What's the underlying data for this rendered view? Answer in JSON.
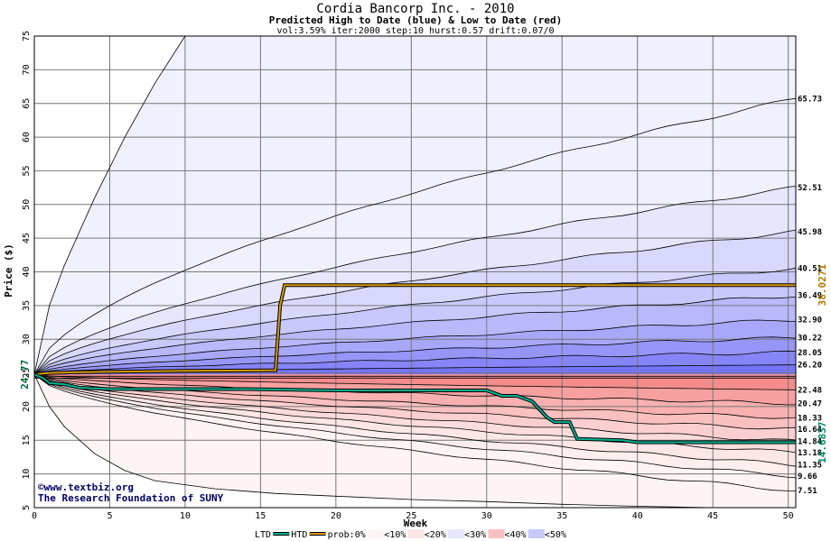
{
  "chart_data": {
    "type": "area",
    "title": "Cordia Bancorp Inc. - 2010",
    "subtitle": "Predicted High to Date (blue) &  Low to Date (red)",
    "params": "vol:3.59% iter:2000 step:10 hurst:0.57 drift:0.07/0",
    "xlabel": "Week",
    "ylabel": "Price ($)",
    "xlim": [
      0,
      50.5
    ],
    "ylim": [
      5,
      75
    ],
    "xticks": [
      0,
      5,
      10,
      15,
      20,
      25,
      30,
      35,
      40,
      45,
      50
    ],
    "yticks": [
      5,
      10,
      15,
      20,
      25,
      30,
      35,
      40,
      45,
      50,
      55,
      60,
      65,
      70,
      75
    ],
    "start_price": 24.77,
    "start_label": "24.77",
    "grid": true,
    "high_bands": [
      {
        "end": 26.2,
        "label": "26.20"
      },
      {
        "end": 28.05,
        "label": "28.05"
      },
      {
        "end": 30.22,
        "label": "30.22"
      },
      {
        "end": 32.9,
        "label": "32.90"
      },
      {
        "end": 36.49,
        "label": "36.49"
      },
      {
        "end": 40.51,
        "label": "40.51"
      },
      {
        "end": 45.98,
        "label": "45.98"
      },
      {
        "end": 52.51,
        "label": "52.51"
      },
      {
        "end": 65.73,
        "label": "65.73"
      }
    ],
    "low_bands": [
      {
        "end": 22.48,
        "label": "22.48"
      },
      {
        "end": 20.47,
        "label": "20.47"
      },
      {
        "end": 18.33,
        "label": "18.33"
      },
      {
        "end": 16.64,
        "label": "16.64"
      },
      {
        "end": 14.84,
        "label": "14.84"
      },
      {
        "end": 13.18,
        "label": "13.18"
      },
      {
        "end": 11.35,
        "label": "11.35"
      },
      {
        "end": 9.66,
        "label": "9.66"
      },
      {
        "end": 7.51,
        "label": "7.51"
      }
    ],
    "htd_series": {
      "name": "HTD",
      "end_label": "38.0271",
      "points": [
        [
          0,
          24.77
        ],
        [
          1,
          25.0
        ],
        [
          3,
          25.1
        ],
        [
          6,
          25.2
        ],
        [
          10,
          25.3
        ],
        [
          16,
          25.4
        ],
        [
          16.3,
          35.0
        ],
        [
          16.6,
          38.03
        ],
        [
          50.5,
          38.03
        ]
      ]
    },
    "ltd_series": {
      "name": "LTD",
      "end_label": "14.6837",
      "points": [
        [
          0,
          24.77
        ],
        [
          0.6,
          24.2
        ],
        [
          1,
          23.5
        ],
        [
          2,
          23.3
        ],
        [
          3,
          22.8
        ],
        [
          5,
          22.6
        ],
        [
          8,
          22.6
        ],
        [
          14,
          22.6
        ],
        [
          20,
          22.4
        ],
        [
          30,
          22.4
        ],
        [
          31,
          21.6
        ],
        [
          32,
          21.6
        ],
        [
          33,
          20.8
        ],
        [
          34,
          18.4
        ],
        [
          34.5,
          17.7
        ],
        [
          35.5,
          17.7
        ],
        [
          36,
          15.2
        ],
        [
          39,
          15.0
        ],
        [
          40,
          14.7
        ],
        [
          50.5,
          14.7
        ]
      ]
    },
    "max_curve": [
      [
        0,
        24.77
      ],
      [
        1,
        35
      ],
      [
        2,
        41
      ],
      [
        4,
        51
      ],
      [
        6,
        60
      ],
      [
        8,
        68
      ],
      [
        10,
        75
      ]
    ],
    "min_curve": [
      [
        0,
        24.77
      ],
      [
        1,
        20
      ],
      [
        2,
        17
      ],
      [
        4,
        13
      ],
      [
        6,
        10.5
      ],
      [
        8,
        9
      ],
      [
        12,
        7.8
      ],
      [
        16,
        7.1
      ],
      [
        20,
        6.7
      ],
      [
        25,
        6.2
      ],
      [
        30,
        5.9
      ],
      [
        35,
        5.5
      ],
      [
        40,
        5.2
      ],
      [
        45,
        5.0
      ],
      [
        50.5,
        5.0
      ]
    ]
  },
  "credit": {
    "line1": "©www.textbiz.org",
    "line2": "The Research Foundation of SUNY"
  },
  "legend": {
    "ltd": "LTD",
    "htd": "HTD",
    "prob": "prob:0%",
    "items": [
      "<10%",
      "<20%",
      "<30%",
      "<40%",
      "<50%"
    ]
  },
  "colors": {
    "high_fills": [
      "#7474f8",
      "#8585f8",
      "#9696f8",
      "#a8a8fa",
      "#b8b8fb",
      "#c8c8fc",
      "#d8d8fc",
      "#e6e6fd",
      "#f0f0fe"
    ],
    "low_fills": [
      "#f48c8c",
      "#f6a0a0",
      "#f8b0b0",
      "#fac0c0",
      "#fbcfcf",
      "#fcdcdc",
      "#fde6e6",
      "#feeeee",
      "#fff4f4"
    ],
    "htd": "#d89a00",
    "ltd": "#00b090",
    "legend_swatches": [
      "#fff4f4",
      "#fde6e6",
      "#e6e6fd",
      "#fac0c0",
      "#c8c8fc",
      "#f48c8c",
      "#9696f8"
    ]
  }
}
